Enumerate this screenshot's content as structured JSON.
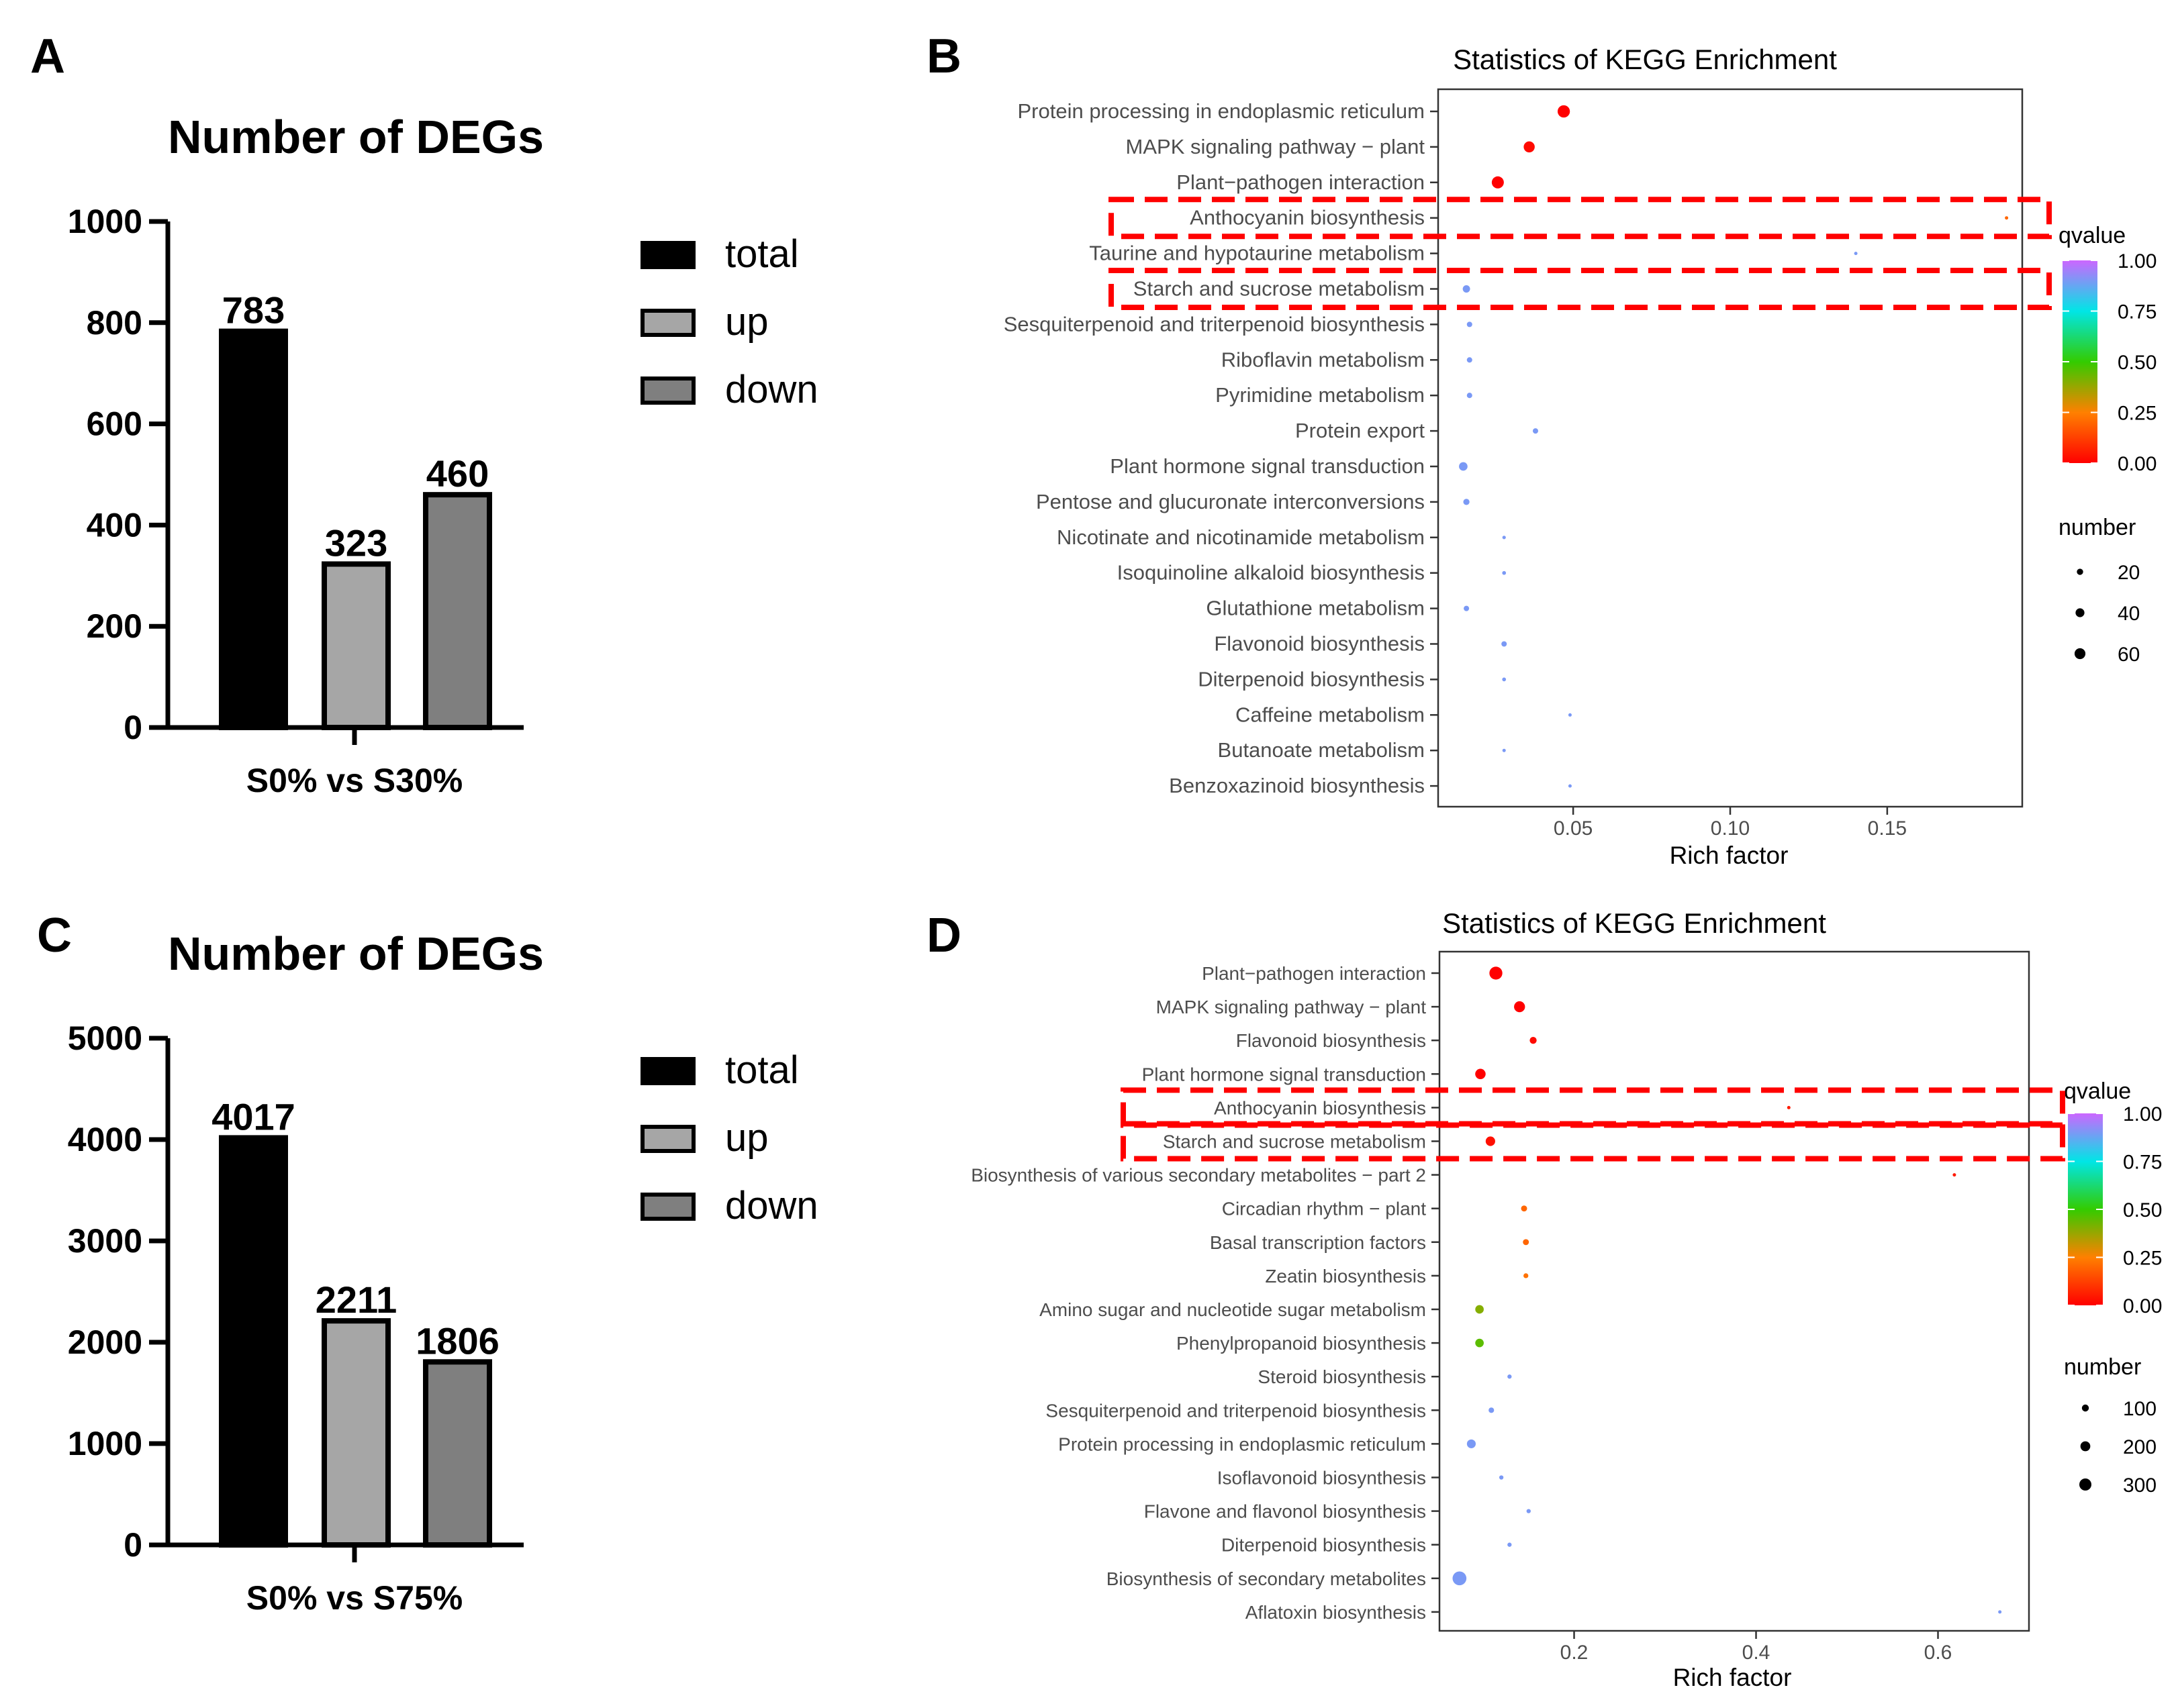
{
  "panels": {
    "A": {
      "letter": "A",
      "chart_data": {
        "type": "bar",
        "title": "Number of DEGs",
        "xlabel": "S0% vs S30%",
        "ylabel": "",
        "categories": [
          "total",
          "up",
          "down"
        ],
        "values": [
          783,
          323,
          460
        ],
        "ylim": [
          0,
          1000
        ],
        "yticks": [
          0,
          200,
          400,
          600,
          800,
          1000
        ],
        "colors": [
          "#000000",
          "#a6a6a6",
          "#7f7f7f"
        ],
        "legend": [
          "total",
          "up",
          "down"
        ],
        "legend_position": "right"
      }
    },
    "C": {
      "letter": "C",
      "chart_data": {
        "type": "bar",
        "title": "Number of DEGs",
        "xlabel": "S0% vs S75%",
        "ylabel": "",
        "categories": [
          "total",
          "up",
          "down"
        ],
        "values": [
          4017,
          2211,
          1806
        ],
        "ylim": [
          0,
          5000
        ],
        "yticks": [
          0,
          1000,
          2000,
          3000,
          4000,
          5000
        ],
        "colors": [
          "#000000",
          "#a6a6a6",
          "#7f7f7f"
        ],
        "legend": [
          "total",
          "up",
          "down"
        ],
        "legend_position": "right"
      }
    },
    "B": {
      "letter": "B",
      "chart_data": {
        "type": "scatter",
        "title": "Statistics of KEGG Enrichment",
        "xlabel": "Rich factor",
        "xlim": [
          0.007,
          0.193
        ],
        "xticks": [
          0.05,
          0.1,
          0.15
        ],
        "xtick_labels": [
          "0.05",
          "0.10",
          "0.15"
        ],
        "color_legend": {
          "title": "qvalue",
          "ticks": [
            1.0,
            0.75,
            0.5,
            0.25,
            0.0
          ],
          "labels": [
            "1.00",
            "0.75",
            "0.50",
            "0.25",
            "0.00"
          ]
        },
        "size_legend": {
          "title": "number",
          "values": [
            20,
            40,
            60
          ],
          "labels": [
            "20",
            "40",
            "60"
          ]
        },
        "points": [
          {
            "pathway": "Protein processing in endoplasmic reticulum",
            "rich": 0.047,
            "q": 0.0,
            "n": 62
          },
          {
            "pathway": "MAPK signaling pathway − plant",
            "rich": 0.036,
            "q": 0.02,
            "n": 50
          },
          {
            "pathway": "Plant−pathogen interaction",
            "rich": 0.026,
            "q": 0.0,
            "n": 60
          },
          {
            "pathway": "Anthocyanin biosynthesis",
            "rich": 0.188,
            "q": 0.2,
            "n": 3
          },
          {
            "pathway": "Taurine and hypotaurine metabolism",
            "rich": 0.14,
            "q": 0.9,
            "n": 2
          },
          {
            "pathway": "Starch and sucrose metabolism",
            "rich": 0.016,
            "q": 0.9,
            "n": 22
          },
          {
            "pathway": "Sesquiterpenoid and triterpenoid biosynthesis",
            "rich": 0.017,
            "q": 0.9,
            "n": 12
          },
          {
            "pathway": "Riboflavin metabolism",
            "rich": 0.017,
            "q": 0.9,
            "n": 12
          },
          {
            "pathway": "Pyrimidine metabolism",
            "rich": 0.017,
            "q": 0.9,
            "n": 12
          },
          {
            "pathway": "Protein export",
            "rich": 0.038,
            "q": 0.9,
            "n": 12
          },
          {
            "pathway": "Plant hormone signal transduction",
            "rich": 0.015,
            "q": 0.9,
            "n": 30
          },
          {
            "pathway": "Pentose and glucuronate interconversions",
            "rich": 0.016,
            "q": 0.9,
            "n": 16
          },
          {
            "pathway": "Nicotinate and nicotinamide metabolism",
            "rich": 0.028,
            "q": 0.9,
            "n": 5
          },
          {
            "pathway": "Isoquinoline alkaloid biosynthesis",
            "rich": 0.028,
            "q": 0.9,
            "n": 6
          },
          {
            "pathway": "Glutathione metabolism",
            "rich": 0.016,
            "q": 0.9,
            "n": 12
          },
          {
            "pathway": "Flavonoid biosynthesis",
            "rich": 0.028,
            "q": 0.9,
            "n": 12
          },
          {
            "pathway": "Diterpenoid biosynthesis",
            "rich": 0.028,
            "q": 0.9,
            "n": 6
          },
          {
            "pathway": "Caffeine metabolism",
            "rich": 0.049,
            "q": 0.9,
            "n": 2
          },
          {
            "pathway": "Butanoate metabolism",
            "rich": 0.028,
            "q": 0.9,
            "n": 3
          },
          {
            "pathway": "Benzoxazinoid biosynthesis",
            "rich": 0.049,
            "q": 0.9,
            "n": 2
          }
        ],
        "highlighted": [
          "Anthocyanin biosynthesis",
          "Starch and sucrose metabolism"
        ]
      }
    },
    "D": {
      "letter": "D",
      "chart_data": {
        "type": "scatter",
        "title": "Statistics of KEGG Enrichment",
        "xlabel": "Rich factor",
        "xlim": [
          0.052,
          0.7
        ],
        "xticks": [
          0.2,
          0.4,
          0.6
        ],
        "xtick_labels": [
          "0.2",
          "0.4",
          "0.6"
        ],
        "color_legend": {
          "title": "qvalue",
          "ticks": [
            1.0,
            0.75,
            0.5,
            0.25,
            0.0
          ],
          "labels": [
            "1.00",
            "0.75",
            "0.50",
            "0.25",
            "0.00"
          ]
        },
        "size_legend": {
          "title": "number",
          "values": [
            100,
            200,
            300
          ],
          "labels": [
            "100",
            "200",
            "300"
          ]
        },
        "points": [
          {
            "pathway": "Plant−pathogen interaction",
            "rich": 0.114,
            "q": 0.0,
            "n": 280
          },
          {
            "pathway": "MAPK signaling pathway − plant",
            "rich": 0.14,
            "q": 0.0,
            "n": 200
          },
          {
            "pathway": "Flavonoid biosynthesis",
            "rich": 0.155,
            "q": 0.02,
            "n": 80
          },
          {
            "pathway": "Plant hormone signal transduction",
            "rich": 0.097,
            "q": 0.0,
            "n": 180
          },
          {
            "pathway": "Anthocyanin biosynthesis",
            "rich": 0.436,
            "q": 0.05,
            "n": 15
          },
          {
            "pathway": "Starch and sucrose metabolism",
            "rich": 0.108,
            "q": 0.03,
            "n": 150
          },
          {
            "pathway": "Biosynthesis of various secondary metabolites − part 2",
            "rich": 0.618,
            "q": 0.05,
            "n": 15
          },
          {
            "pathway": "Circadian rhythm − plant",
            "rich": 0.145,
            "q": 0.2,
            "n": 60
          },
          {
            "pathway": "Basal transcription factors",
            "rich": 0.147,
            "q": 0.2,
            "n": 60
          },
          {
            "pathway": "Zeatin biosynthesis",
            "rich": 0.147,
            "q": 0.22,
            "n": 40
          },
          {
            "pathway": "Amino sugar and nucleotide sugar metabolism",
            "rich": 0.096,
            "q": 0.4,
            "n": 120
          },
          {
            "pathway": "Phenylpropanoid biosynthesis",
            "rich": 0.096,
            "q": 0.45,
            "n": 120
          },
          {
            "pathway": "Steroid biosynthesis",
            "rich": 0.129,
            "q": 0.9,
            "n": 30
          },
          {
            "pathway": "Sesquiterpenoid and triterpenoid biosynthesis",
            "rich": 0.109,
            "q": 0.9,
            "n": 50
          },
          {
            "pathway": "Protein processing in endoplasmic reticulum",
            "rich": 0.087,
            "q": 0.9,
            "n": 130
          },
          {
            "pathway": "Isoflavonoid biosynthesis",
            "rich": 0.12,
            "q": 0.9,
            "n": 30
          },
          {
            "pathway": "Flavone and flavonol biosynthesis",
            "rich": 0.15,
            "q": 0.9,
            "n": 30
          },
          {
            "pathway": "Diterpenoid biosynthesis",
            "rich": 0.129,
            "q": 0.9,
            "n": 30
          },
          {
            "pathway": "Biosynthesis of secondary metabolites",
            "rich": 0.074,
            "q": 0.9,
            "n": 320
          },
          {
            "pathway": "Aflatoxin biosynthesis",
            "rich": 0.668,
            "q": 0.9,
            "n": 5
          }
        ],
        "highlighted": [
          "Anthocyanin biosynthesis",
          "Starch and sucrose metabolism"
        ]
      }
    }
  }
}
